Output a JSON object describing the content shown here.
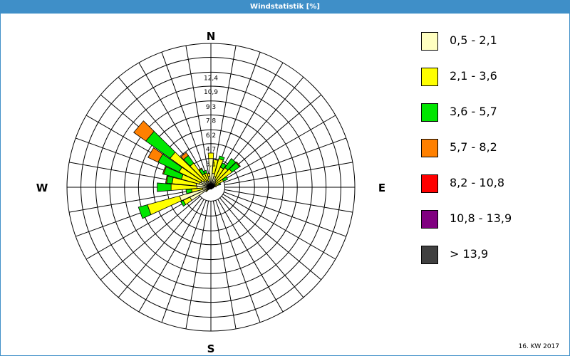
{
  "window": {
    "title": "Windstatistik [%]"
  },
  "footer": {
    "week": "16. KW 2017"
  },
  "chart_data": {
    "type": "windrose",
    "title": "Windstatistik [%]",
    "unit": "%",
    "directions": [
      "N",
      "E",
      "S",
      "W"
    ],
    "radial_ticks": [
      "3,1",
      "4,7",
      "6,2",
      "7,8",
      "9,3",
      "10,9",
      "12,4"
    ],
    "rmax": 15.5,
    "grid": true,
    "legend_position": "right",
    "classes": [
      {
        "label": "0,5 - 2,1",
        "color": "#ffffc0"
      },
      {
        "label": "2,1 - 3,6",
        "color": "#ffff00"
      },
      {
        "label": "3,6 - 5,7",
        "color": "#00e600"
      },
      {
        "label": "5,7 - 8,2",
        "color": "#ff8000"
      },
      {
        "label": "8,2 - 10,8",
        "color": "#ff0000"
      },
      {
        "label": "10,8 - 13,9",
        "color": "#800080"
      },
      {
        "label": " > 13,9",
        "color": "#404040"
      }
    ],
    "sector_angles_deg": [
      0,
      10,
      20,
      30,
      40,
      50,
      60,
      70,
      80,
      90,
      100,
      110,
      120,
      130,
      140,
      150,
      160,
      170,
      180,
      190,
      200,
      210,
      220,
      230,
      240,
      250,
      260,
      270,
      280,
      290,
      300,
      310,
      320,
      330,
      340,
      350
    ],
    "series": [
      {
        "name": "0,5 - 2,1",
        "values": [
          3.1,
          1.5,
          1.2,
          1.0,
          0.8,
          0.6,
          0.5,
          0.4,
          0.3,
          0.2,
          0.2,
          0.2,
          0.2,
          0.2,
          0.2,
          0.2,
          0.2,
          0.2,
          0.2,
          0.2,
          0.2,
          0.2,
          0.3,
          0.4,
          2.5,
          3.5,
          0.9,
          1.5,
          1.6,
          1.3,
          1.2,
          1.0,
          0.8,
          0.8,
          0.7,
          1.2
        ]
      },
      {
        "name": "2,1 - 3,6",
        "values": [
          0.6,
          1.5,
          2.0,
          1.4,
          1.8,
          2.2,
          1.0,
          0.5,
          0.3,
          0.1,
          0.1,
          0,
          0,
          0,
          0,
          0,
          0,
          0,
          0,
          0,
          0,
          0,
          0,
          0.3,
          0.8,
          3.6,
          1.2,
          2.8,
          2.6,
          2.0,
          2.6,
          4.4,
          2.4,
          0.8,
          0.9,
          0.3
        ]
      },
      {
        "name": "3,6 - 5,7",
        "values": [
          0,
          0,
          0.3,
          0.5,
          1.2,
          1.0,
          0.5,
          0.2,
          0,
          0,
          0,
          0,
          0,
          0,
          0,
          0,
          0,
          0,
          0,
          0,
          0,
          0,
          0,
          0,
          0.3,
          1.0,
          0.6,
          1.5,
          0.6,
          2.0,
          2.5,
          3.2,
          1.0,
          0.6,
          0.3,
          0
        ]
      },
      {
        "name": "5,7 - 8,2",
        "values": [
          0,
          0,
          0,
          0,
          0,
          0.1,
          0,
          0,
          0,
          0,
          0,
          0,
          0,
          0,
          0,
          0,
          0,
          0,
          0,
          0,
          0,
          0,
          0,
          0,
          0,
          0,
          0,
          0,
          0.1,
          0.1,
          1.2,
          1.6,
          0.4,
          0.1,
          0,
          0
        ]
      },
      {
        "name": "8,2 - 10,8",
        "values": [
          0,
          0,
          0,
          0,
          0,
          0,
          0,
          0,
          0,
          0,
          0,
          0,
          0,
          0,
          0,
          0,
          0,
          0,
          0,
          0,
          0,
          0,
          0,
          0,
          0,
          0,
          0,
          0,
          0,
          0,
          0,
          0,
          0,
          0,
          0,
          0
        ]
      },
      {
        "name": "10,8 - 13,9",
        "values": [
          0,
          0,
          0,
          0,
          0,
          0,
          0,
          0,
          0,
          0,
          0,
          0,
          0,
          0,
          0,
          0,
          0,
          0,
          0,
          0,
          0,
          0,
          0,
          0,
          0,
          0,
          0,
          0,
          0,
          0,
          0,
          0,
          0,
          0,
          0,
          0
        ]
      },
      {
        "name": " > 13,9",
        "values": [
          0,
          0,
          0,
          0,
          0,
          0,
          0,
          0,
          0,
          0,
          0,
          0,
          0,
          0,
          0,
          0,
          0,
          0,
          0,
          0,
          0,
          0,
          0,
          0,
          0,
          0,
          0,
          0,
          0,
          0,
          0,
          0,
          0,
          0,
          0,
          0
        ]
      }
    ]
  }
}
